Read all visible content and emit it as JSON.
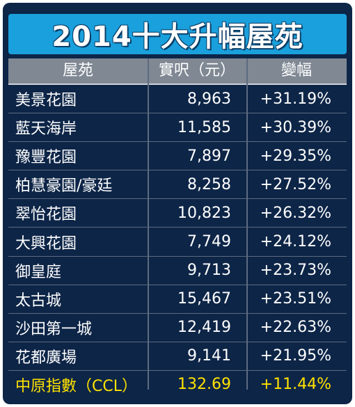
{
  "chart_data": {
    "type": "table",
    "title": "2014十大升幅屋苑",
    "columns": [
      "屋苑",
      "實呎（元）",
      "變幅"
    ],
    "rows": [
      {
        "estate": "美景花園",
        "price": "8,963",
        "change": "+31.19%"
      },
      {
        "estate": "藍天海岸",
        "price": "11,585",
        "change": "+30.39%"
      },
      {
        "estate": "豫豐花園",
        "price": "7,897",
        "change": "+29.35%"
      },
      {
        "estate": "柏慧豪園/豪廷",
        "price": "8,258",
        "change": "+27.52%"
      },
      {
        "estate": "翠怡花園",
        "price": "10,823",
        "change": "+26.32%"
      },
      {
        "estate": "大興花園",
        "price": "7,749",
        "change": "+24.12%"
      },
      {
        "estate": "御皇庭",
        "price": "9,713",
        "change": "+23.73%"
      },
      {
        "estate": "太古城",
        "price": "15,467",
        "change": "+23.51%"
      },
      {
        "estate": "沙田第一城",
        "price": "12,419",
        "change": "+22.63%"
      },
      {
        "estate": "花都廣場",
        "price": "9,141",
        "change": "+21.95%"
      }
    ],
    "index_row": {
      "estate": "中原指數（CCL）",
      "price": "132.69",
      "change": "+11.44%"
    }
  },
  "colors": {
    "panel": "#0d2547",
    "banner": "#1aa0dc",
    "header": "#7f8893",
    "text": "#ffffff",
    "highlight": "#ffe200"
  }
}
